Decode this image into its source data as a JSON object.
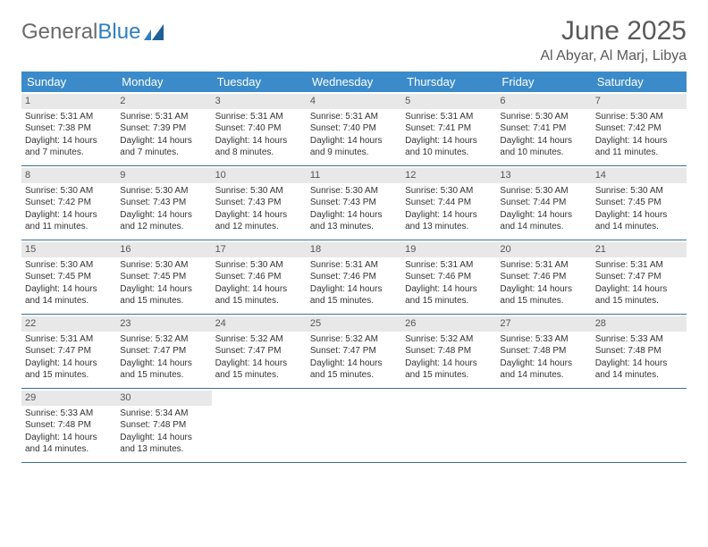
{
  "logo": {
    "text1": "General",
    "text2": "Blue"
  },
  "title": "June 2025",
  "subtitle": "Al Abyar, Al Marj, Libya",
  "colors": {
    "header_bg": "#3b8bca",
    "header_text": "#ffffff",
    "daynum_bg": "#e8e8e8",
    "border": "#3b6f9a",
    "title_color": "#5a5a5a",
    "logo_gray": "#6a6a6a",
    "logo_blue": "#2f7fc2"
  },
  "day_names": [
    "Sunday",
    "Monday",
    "Tuesday",
    "Wednesday",
    "Thursday",
    "Friday",
    "Saturday"
  ],
  "weeks": [
    [
      {
        "n": "1",
        "sunrise": "Sunrise: 5:31 AM",
        "sunset": "Sunset: 7:38 PM",
        "daylight": "Daylight: 14 hours and 7 minutes."
      },
      {
        "n": "2",
        "sunrise": "Sunrise: 5:31 AM",
        "sunset": "Sunset: 7:39 PM",
        "daylight": "Daylight: 14 hours and 7 minutes."
      },
      {
        "n": "3",
        "sunrise": "Sunrise: 5:31 AM",
        "sunset": "Sunset: 7:40 PM",
        "daylight": "Daylight: 14 hours and 8 minutes."
      },
      {
        "n": "4",
        "sunrise": "Sunrise: 5:31 AM",
        "sunset": "Sunset: 7:40 PM",
        "daylight": "Daylight: 14 hours and 9 minutes."
      },
      {
        "n": "5",
        "sunrise": "Sunrise: 5:31 AM",
        "sunset": "Sunset: 7:41 PM",
        "daylight": "Daylight: 14 hours and 10 minutes."
      },
      {
        "n": "6",
        "sunrise": "Sunrise: 5:30 AM",
        "sunset": "Sunset: 7:41 PM",
        "daylight": "Daylight: 14 hours and 10 minutes."
      },
      {
        "n": "7",
        "sunrise": "Sunrise: 5:30 AM",
        "sunset": "Sunset: 7:42 PM",
        "daylight": "Daylight: 14 hours and 11 minutes."
      }
    ],
    [
      {
        "n": "8",
        "sunrise": "Sunrise: 5:30 AM",
        "sunset": "Sunset: 7:42 PM",
        "daylight": "Daylight: 14 hours and 11 minutes."
      },
      {
        "n": "9",
        "sunrise": "Sunrise: 5:30 AM",
        "sunset": "Sunset: 7:43 PM",
        "daylight": "Daylight: 14 hours and 12 minutes."
      },
      {
        "n": "10",
        "sunrise": "Sunrise: 5:30 AM",
        "sunset": "Sunset: 7:43 PM",
        "daylight": "Daylight: 14 hours and 12 minutes."
      },
      {
        "n": "11",
        "sunrise": "Sunrise: 5:30 AM",
        "sunset": "Sunset: 7:43 PM",
        "daylight": "Daylight: 14 hours and 13 minutes."
      },
      {
        "n": "12",
        "sunrise": "Sunrise: 5:30 AM",
        "sunset": "Sunset: 7:44 PM",
        "daylight": "Daylight: 14 hours and 13 minutes."
      },
      {
        "n": "13",
        "sunrise": "Sunrise: 5:30 AM",
        "sunset": "Sunset: 7:44 PM",
        "daylight": "Daylight: 14 hours and 14 minutes."
      },
      {
        "n": "14",
        "sunrise": "Sunrise: 5:30 AM",
        "sunset": "Sunset: 7:45 PM",
        "daylight": "Daylight: 14 hours and 14 minutes."
      }
    ],
    [
      {
        "n": "15",
        "sunrise": "Sunrise: 5:30 AM",
        "sunset": "Sunset: 7:45 PM",
        "daylight": "Daylight: 14 hours and 14 minutes."
      },
      {
        "n": "16",
        "sunrise": "Sunrise: 5:30 AM",
        "sunset": "Sunset: 7:45 PM",
        "daylight": "Daylight: 14 hours and 15 minutes."
      },
      {
        "n": "17",
        "sunrise": "Sunrise: 5:30 AM",
        "sunset": "Sunset: 7:46 PM",
        "daylight": "Daylight: 14 hours and 15 minutes."
      },
      {
        "n": "18",
        "sunrise": "Sunrise: 5:31 AM",
        "sunset": "Sunset: 7:46 PM",
        "daylight": "Daylight: 14 hours and 15 minutes."
      },
      {
        "n": "19",
        "sunrise": "Sunrise: 5:31 AM",
        "sunset": "Sunset: 7:46 PM",
        "daylight": "Daylight: 14 hours and 15 minutes."
      },
      {
        "n": "20",
        "sunrise": "Sunrise: 5:31 AM",
        "sunset": "Sunset: 7:46 PM",
        "daylight": "Daylight: 14 hours and 15 minutes."
      },
      {
        "n": "21",
        "sunrise": "Sunrise: 5:31 AM",
        "sunset": "Sunset: 7:47 PM",
        "daylight": "Daylight: 14 hours and 15 minutes."
      }
    ],
    [
      {
        "n": "22",
        "sunrise": "Sunrise: 5:31 AM",
        "sunset": "Sunset: 7:47 PM",
        "daylight": "Daylight: 14 hours and 15 minutes."
      },
      {
        "n": "23",
        "sunrise": "Sunrise: 5:32 AM",
        "sunset": "Sunset: 7:47 PM",
        "daylight": "Daylight: 14 hours and 15 minutes."
      },
      {
        "n": "24",
        "sunrise": "Sunrise: 5:32 AM",
        "sunset": "Sunset: 7:47 PM",
        "daylight": "Daylight: 14 hours and 15 minutes."
      },
      {
        "n": "25",
        "sunrise": "Sunrise: 5:32 AM",
        "sunset": "Sunset: 7:47 PM",
        "daylight": "Daylight: 14 hours and 15 minutes."
      },
      {
        "n": "26",
        "sunrise": "Sunrise: 5:32 AM",
        "sunset": "Sunset: 7:48 PM",
        "daylight": "Daylight: 14 hours and 15 minutes."
      },
      {
        "n": "27",
        "sunrise": "Sunrise: 5:33 AM",
        "sunset": "Sunset: 7:48 PM",
        "daylight": "Daylight: 14 hours and 14 minutes."
      },
      {
        "n": "28",
        "sunrise": "Sunrise: 5:33 AM",
        "sunset": "Sunset: 7:48 PM",
        "daylight": "Daylight: 14 hours and 14 minutes."
      }
    ],
    [
      {
        "n": "29",
        "sunrise": "Sunrise: 5:33 AM",
        "sunset": "Sunset: 7:48 PM",
        "daylight": "Daylight: 14 hours and 14 minutes."
      },
      {
        "n": "30",
        "sunrise": "Sunrise: 5:34 AM",
        "sunset": "Sunset: 7:48 PM",
        "daylight": "Daylight: 14 hours and 13 minutes."
      },
      {
        "empty": true
      },
      {
        "empty": true
      },
      {
        "empty": true
      },
      {
        "empty": true
      },
      {
        "empty": true
      }
    ]
  ]
}
